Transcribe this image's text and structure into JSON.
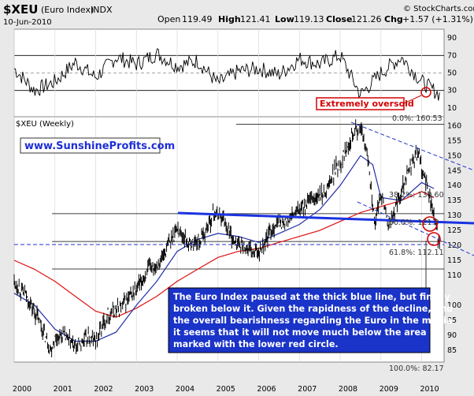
{
  "header": {
    "symbol": "$XEU",
    "name": "(Euro Index)",
    "exchange": "INDX",
    "date": "10-Jun-2010",
    "brand": "© StockCharts.com",
    "open_label": "Open",
    "open": "119.49",
    "high_label": "High",
    "high": "121.41",
    "low_label": "Low",
    "low": "119.13",
    "close_label": "Close",
    "close": "121.26",
    "chg_label": "Chg",
    "chg": "+1.57 (+1.31%)"
  },
  "rsi_panel": {
    "ticks": [
      "90",
      "70",
      "50",
      "30",
      "10"
    ],
    "annotation": "Extremely oversold"
  },
  "price_panel": {
    "label": "$XEU (Weekly)",
    "url": "www.SunshineProfits.com",
    "fib_labels": [
      "0.0%: 160.53",
      "38.2%: 130.60",
      "50.0%: 121.3",
      "61.8%: 112.11",
      "100.0%: 82.17"
    ],
    "callout_lines": [
      "The Euro Index paused at the thick blue line, but finally",
      "broken below it. Given the rapidness of the decline, and",
      "the overall bearishness regarding the Euro in the media",
      "it seems that it will not move much below the area",
      "marked with the lower red circle."
    ]
  },
  "colors": {
    "background": "#e9e9e9",
    "plot_bg": "#ffffff",
    "price_bar": "#000000",
    "ma_short": "#1f2fa8",
    "ma_long": "#e01010",
    "trend_line": "#1a33e0",
    "channel": "#2233cc",
    "callout_bg": "#1a33c8",
    "annotation": "#d40000"
  },
  "chart_data": [
    {
      "type": "line",
      "title": "RSI",
      "ylim": [
        0,
        100
      ],
      "yticks": [
        90,
        70,
        50,
        30,
        10
      ],
      "x": [
        "2000",
        "2000.5",
        "2001",
        "2001.5",
        "2002",
        "2002.5",
        "2003",
        "2003.5",
        "2004",
        "2004.5",
        "2005",
        "2005.5",
        "2006",
        "2006.5",
        "2007",
        "2007.5",
        "2008",
        "2008.5",
        "2009",
        "2009.5",
        "2010",
        "2010.45"
      ],
      "values": [
        55,
        30,
        40,
        62,
        45,
        68,
        60,
        72,
        58,
        64,
        38,
        52,
        55,
        48,
        66,
        60,
        70,
        25,
        50,
        68,
        40,
        25
      ]
    },
    {
      "type": "line",
      "title": "$XEU (Weekly)",
      "ylim": [
        81,
        163
      ],
      "yticks": [
        160,
        155,
        150,
        145,
        140,
        135,
        130,
        125,
        120,
        115,
        110,
        100,
        95,
        90,
        85
      ],
      "xticks": [
        "2000",
        "2001",
        "2002",
        "2003",
        "2004",
        "2005",
        "2006",
        "2007",
        "2008",
        "2009",
        "2010"
      ],
      "series": [
        {
          "x": [
            2000.0,
            2000.3,
            2000.6,
            2000.9,
            2001.0,
            2001.2,
            2001.5,
            2001.8,
            2002.0,
            2002.3,
            2002.6,
            2003.0,
            2003.3,
            2003.6,
            2004.0,
            2004.3,
            2004.6,
            2004.9,
            2005.1,
            2005.4,
            2005.6,
            2005.9,
            2006.1,
            2006.4,
            2006.7,
            2007.0,
            2007.3,
            2007.6,
            2007.9,
            2008.0,
            2008.3,
            2008.5,
            2008.7,
            2008.85,
            2009.0,
            2009.2,
            2009.4,
            2009.6,
            2009.9,
            2010.0,
            2010.2,
            2010.4,
            2010.45
          ],
          "values": [
            108,
            103,
            95,
            85,
            89,
            90,
            86,
            89,
            88,
            97,
            99,
            105,
            112,
            115,
            126,
            120,
            122,
            131,
            130,
            121,
            120,
            117,
            120,
            127,
            128,
            132,
            135,
            137,
            146,
            147,
            158,
            159,
            148,
            126,
            138,
            126,
            134,
            143,
            151,
            146,
            136,
            123,
            121
          ]
        },
        {
          "x": [
            2000.0,
            2000.5,
            2001.0,
            2001.5,
            2002.0,
            2002.5,
            2003.0,
            2003.5,
            2004.0,
            2004.5,
            2005.0,
            2005.5,
            2006.0,
            2006.5,
            2007.0,
            2007.5,
            2008.0,
            2008.5,
            2008.8,
            2009.0,
            2009.5,
            2010.0,
            2010.3
          ],
          "values": [
            104,
            100,
            92,
            88,
            88,
            91,
            100,
            108,
            118,
            122,
            124,
            123,
            121,
            124,
            127,
            132,
            140,
            150,
            147,
            136,
            135,
            141,
            139
          ]
        },
        {
          "x": [
            2000.0,
            2000.5,
            2001.0,
            2001.5,
            2002.0,
            2002.5,
            2003.0,
            2003.5,
            2004.0,
            2004.5,
            2005.0,
            2005.5,
            2006.0,
            2006.5,
            2007.0,
            2007.5,
            2008.0,
            2008.5,
            2009.0,
            2009.5,
            2010.0,
            2010.3
          ],
          "values": [
            115,
            112,
            108,
            103,
            98,
            96,
            99,
            103,
            108,
            112,
            116,
            118,
            119,
            121,
            123,
            125,
            128,
            131,
            133,
            135,
            138,
            136
          ]
        }
      ]
    }
  ]
}
